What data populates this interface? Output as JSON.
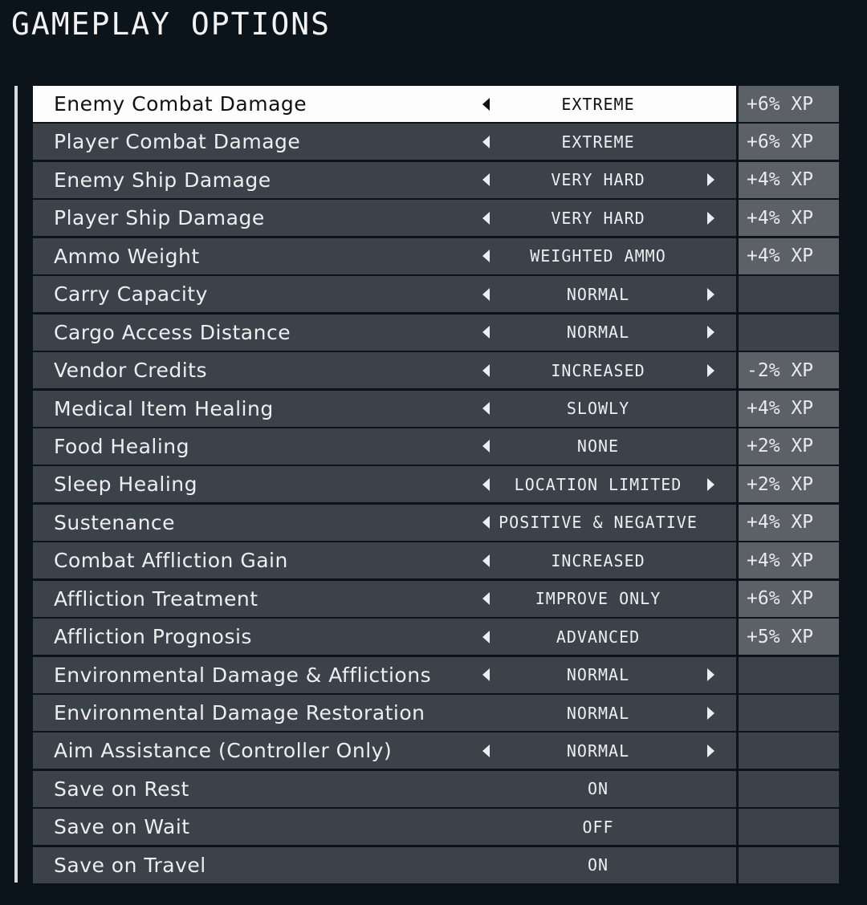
{
  "title": "GAMEPLAY OPTIONS",
  "options": [
    {
      "label": "Enemy Combat Damage",
      "value": "EXTREME",
      "left": true,
      "right": false,
      "xp": "+6% XP",
      "selected": true
    },
    {
      "label": "Player Combat Damage",
      "value": "EXTREME",
      "left": true,
      "right": false,
      "xp": "+6% XP"
    },
    {
      "label": "Enemy Ship Damage",
      "value": "VERY HARD",
      "left": true,
      "right": true,
      "xp": "+4% XP"
    },
    {
      "label": "Player Ship Damage",
      "value": "VERY HARD",
      "left": true,
      "right": true,
      "xp": "+4% XP"
    },
    {
      "label": "Ammo Weight",
      "value": "WEIGHTED AMMO",
      "left": true,
      "right": false,
      "xp": "+4% XP"
    },
    {
      "label": "Carry Capacity",
      "value": "NORMAL",
      "left": true,
      "right": true,
      "xp": ""
    },
    {
      "label": "Cargo Access Distance",
      "value": "NORMAL",
      "left": true,
      "right": true,
      "xp": ""
    },
    {
      "label": "Vendor Credits",
      "value": "INCREASED",
      "left": true,
      "right": true,
      "xp": "-2% XP"
    },
    {
      "label": "Medical Item Healing",
      "value": "SLOWLY",
      "left": true,
      "right": false,
      "xp": "+4% XP"
    },
    {
      "label": "Food Healing",
      "value": "NONE",
      "left": true,
      "right": false,
      "xp": "+2% XP"
    },
    {
      "label": "Sleep Healing",
      "value": "LOCATION LIMITED",
      "left": true,
      "right": true,
      "xp": "+2% XP"
    },
    {
      "label": "Sustenance",
      "value": "POSITIVE & NEGATIVE",
      "left": true,
      "right": false,
      "xp": "+4% XP"
    },
    {
      "label": "Combat Affliction Gain",
      "value": "INCREASED",
      "left": true,
      "right": false,
      "xp": "+4% XP"
    },
    {
      "label": "Affliction Treatment",
      "value": "IMPROVE ONLY",
      "left": true,
      "right": false,
      "xp": "+6% XP"
    },
    {
      "label": "Affliction Prognosis",
      "value": "ADVANCED",
      "left": true,
      "right": false,
      "xp": "+5% XP"
    },
    {
      "label": "Environmental Damage & Afflictions",
      "value": "NORMAL",
      "left": true,
      "right": true,
      "xp": ""
    },
    {
      "label": "Environmental Damage Restoration",
      "value": "NORMAL",
      "left": false,
      "right": true,
      "xp": ""
    },
    {
      "label": "Aim Assistance (Controller Only)",
      "value": "NORMAL",
      "left": true,
      "right": true,
      "xp": ""
    },
    {
      "label": "Save on Rest",
      "value": "ON",
      "left": false,
      "right": false,
      "xp": ""
    },
    {
      "label": "Save on Wait",
      "value": "OFF",
      "left": false,
      "right": false,
      "xp": ""
    },
    {
      "label": "Save on Travel",
      "value": "ON",
      "left": false,
      "right": false,
      "xp": ""
    }
  ],
  "colors": {
    "background": "#0b141b",
    "row": "#3b4249",
    "xp_cell": "#5b6166",
    "selected": "#fdfdfd"
  }
}
